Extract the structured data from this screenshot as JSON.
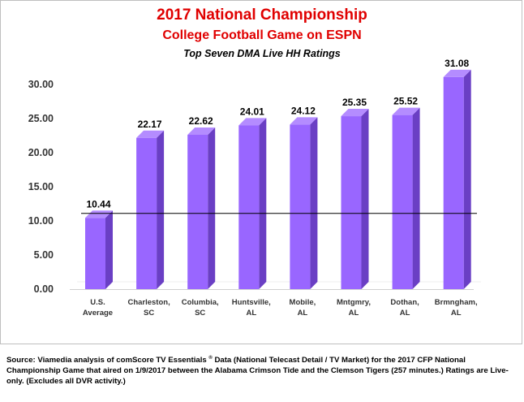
{
  "title": "2017 National Championship",
  "subtitle": "College Football Game on ESPN",
  "subtitle2": "Top Seven DMA Live HH Ratings",
  "source": {
    "part1": "Source: Viamedia analysis of comScore TV Essentials ",
    "mark": "®",
    "part2": " Data (National Telecast Detail / TV Market) for the 2017 CFP National Championship Game that aired on 1/9/2017 between the Alabama Crimson Tide and the Clemson Tigers (257 minutes.) Ratings are Live-only. (Excludes all DVR activity.)"
  },
  "chart_data": {
    "type": "bar",
    "categories": [
      [
        "U.S.",
        "Average"
      ],
      [
        "Charleston,",
        "SC"
      ],
      [
        "Columbia,",
        "SC"
      ],
      [
        "Huntsville,",
        "AL"
      ],
      [
        "Mobile,",
        "AL"
      ],
      [
        "Mntgmry,",
        "AL"
      ],
      [
        "Dothan,",
        "AL"
      ],
      [
        "Brmngham,",
        "AL"
      ]
    ],
    "values": [
      10.44,
      22.17,
      22.62,
      24.01,
      24.12,
      25.35,
      25.52,
      31.08
    ],
    "value_labels": [
      "10.44",
      "22.17",
      "22.62",
      "24.01",
      "24.12",
      "25.35",
      "25.52",
      "31.08"
    ],
    "yticks": [
      "0.00",
      "5.00",
      "10.00",
      "15.00",
      "20.00",
      "25.00",
      "30.00"
    ],
    "ylim": [
      0,
      32
    ],
    "reference_line": 11.1,
    "grid": false,
    "legend": "none",
    "colors": {
      "front": "#9966ff",
      "side": "#6a3fc4",
      "top": "#b48cff"
    }
  }
}
